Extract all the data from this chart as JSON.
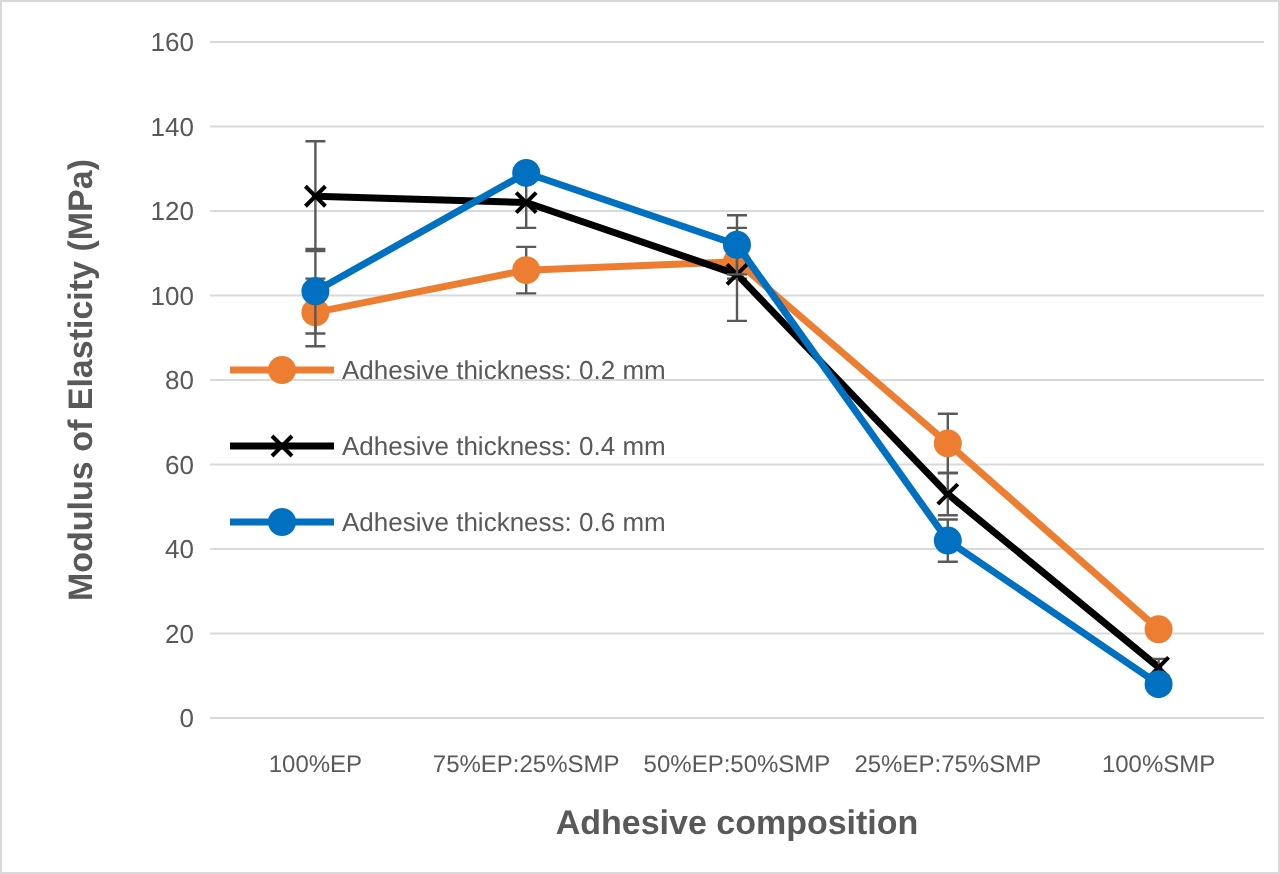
{
  "chart_data": {
    "type": "line",
    "xlabel": "Adhesive composition",
    "ylabel": "Modulus of Elasticity (MPa)",
    "categories": [
      "100%EP",
      "75%EP:25%SMP",
      "50%EP:50%SMP",
      "25%EP:75%SMP",
      "100%SMP"
    ],
    "ylim": [
      0,
      160
    ],
    "yticks": [
      0,
      20,
      40,
      60,
      80,
      100,
      120,
      140,
      160
    ],
    "grid": "y",
    "legend": "left",
    "series": [
      {
        "name": "Adhesive thickness: 0.2 mm",
        "color": "#ed7d31",
        "marker": "circle",
        "values": [
          96,
          106,
          108,
          65,
          21
        ],
        "errors": [
          8,
          5.5,
          4,
          7,
          null
        ]
      },
      {
        "name": "Adhesive thickness: 0.4 mm",
        "color": "#000000",
        "marker": "cross",
        "values": [
          123.5,
          122,
          105,
          53,
          12
        ],
        "errors": [
          13,
          6,
          11,
          5,
          2
        ]
      },
      {
        "name": "Adhesive thickness: 0.6 mm",
        "color": "#0070c0",
        "marker": "circle",
        "values": [
          101,
          129,
          112,
          42,
          8
        ],
        "errors": [
          10,
          null,
          7,
          5,
          null
        ]
      }
    ]
  }
}
